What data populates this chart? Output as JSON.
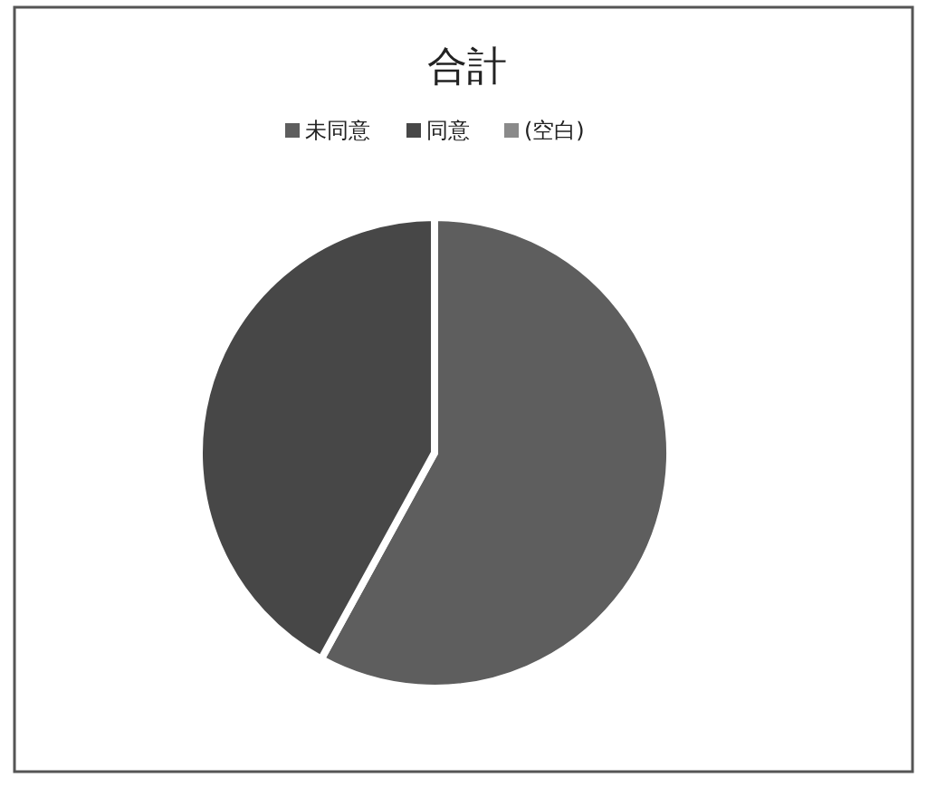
{
  "chart_data": {
    "type": "pie",
    "title": "合計",
    "categories": [
      "未同意",
      "同意",
      "(空白)"
    ],
    "values": [
      58,
      42,
      0
    ],
    "colors": [
      "#5e5e5e",
      "#474747",
      "#8a8a8a"
    ],
    "legend": "top"
  }
}
